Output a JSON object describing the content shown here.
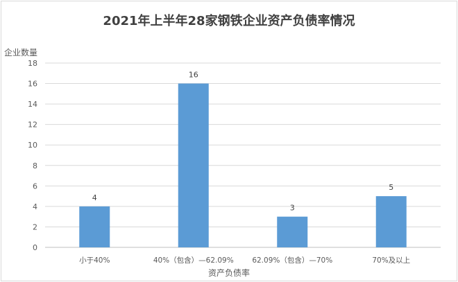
{
  "chart_data": {
    "type": "bar",
    "title": "2021年上半年28家钢铁企业资产负债率情况",
    "xlabel": "资产负债率",
    "ylabel": "企业数量",
    "categories": [
      "小于40%",
      "40%（包含）—62.09%",
      "62.09%（包含）—70%",
      "70%及以上"
    ],
    "values": [
      4,
      16,
      3,
      5
    ],
    "ylim": [
      0,
      18
    ],
    "yticks": [
      0,
      2,
      4,
      6,
      8,
      10,
      12,
      14,
      16,
      18
    ],
    "grid": true,
    "data_labels": true,
    "bar_color": "#5b9bd5"
  }
}
